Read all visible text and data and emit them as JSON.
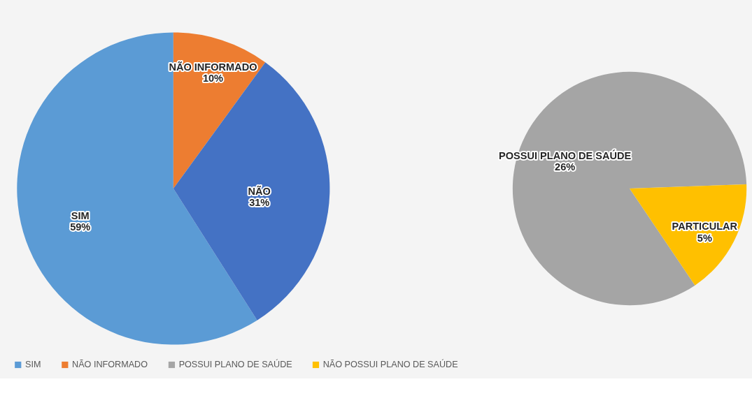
{
  "chart_data": [
    {
      "type": "pie",
      "categories": [
        "SIM",
        "NÃO INFORMADO",
        null
      ],
      "values": [
        59,
        10,
        31
      ],
      "colors": [
        "#5b9bd5",
        "#ed7d31",
        "#4472c4"
      ],
      "value_labels": [
        "SIM\n59%",
        "NÃO INFORMADO\n10%",
        "NÃO\n31%"
      ],
      "legend": "bottom"
    },
    {
      "type": "pie",
      "categories": [
        "POSSUI PLANO DE SAÚDE",
        "NÃO POSSUI PLANO DE SAÚDE"
      ],
      "values": [
        26,
        5
      ],
      "colors": [
        "#a5a5a5",
        "#ffc000"
      ],
      "value_labels": [
        "POSSUI PLANO DE SAÚDE\n26%",
        "PARTICULAR\n5%"
      ],
      "legend": "bottom"
    }
  ]
}
